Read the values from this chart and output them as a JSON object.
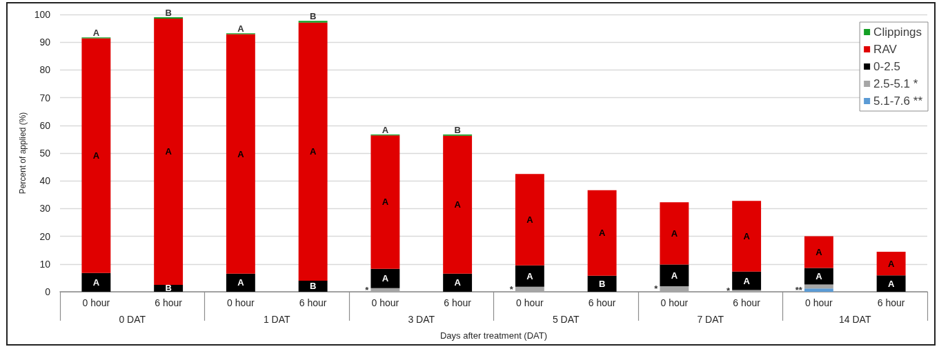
{
  "chart_data": {
    "type": "bar",
    "stacked": true,
    "xlabel": "Days after treatment (DAT)",
    "ylabel": "Percent of applied (%)",
    "categories": [
      "0 hour",
      "6 hour",
      "0 hour",
      "6 hour",
      "0 hour",
      "6 hour",
      "0 hour",
      "6 hour",
      "0 hour",
      "6 hour",
      "0 hour",
      "6 hour"
    ],
    "annotations": [
      "0 DAT",
      "1 DAT",
      "3 DAT",
      "5 DAT",
      "7 DAT",
      "14 DAT"
    ],
    "series": [
      {
        "name": "5.1-7.6 **",
        "color": "#5b9bd5",
        "values": [
          null,
          null,
          null,
          null,
          null,
          null,
          null,
          null,
          null,
          null,
          1.2,
          null
        ],
        "value_labels": [
          null,
          null,
          null,
          null,
          null,
          null,
          null,
          null,
          null,
          null,
          "**",
          null
        ]
      },
      {
        "name": "2.5-5.1 *",
        "color": "#a6a6a6",
        "values": [
          null,
          null,
          null,
          null,
          1.3,
          null,
          1.8,
          null,
          2.0,
          0.6,
          1.4,
          null
        ],
        "value_labels": [
          null,
          null,
          null,
          null,
          "*",
          null,
          "*",
          null,
          "*",
          "*",
          null,
          null
        ]
      },
      {
        "name": "0-2.5",
        "color": "#000000",
        "values": [
          6.8,
          2.5,
          6.5,
          4.0,
          7.0,
          6.5,
          7.7,
          5.8,
          7.8,
          6.7,
          6.0,
          5.9
        ],
        "value_labels": [
          "A",
          "B",
          "A",
          "B",
          "A",
          "A",
          "A",
          "B",
          "A",
          "A",
          "A",
          "A"
        ]
      },
      {
        "name": "RAV",
        "color": "#e00000",
        "values": [
          84.6,
          96.0,
          86.4,
          93.1,
          48.1,
          49.8,
          33.0,
          30.8,
          22.5,
          25.5,
          11.4,
          8.5
        ],
        "value_labels": [
          "A",
          "A",
          "A",
          "A",
          "A",
          "A",
          "A",
          "A",
          "A",
          "A",
          "A",
          "A"
        ]
      },
      {
        "name": "Clippings",
        "color": "#13a025",
        "values": [
          0.3,
          0.5,
          0.3,
          0.6,
          0.3,
          0.4,
          null,
          null,
          null,
          null,
          null,
          null
        ],
        "value_labels": [
          "A",
          "B",
          "A",
          "B",
          "A",
          "B",
          null,
          null,
          null,
          null,
          null,
          null
        ]
      }
    ],
    "ylim": [
      0,
      100
    ],
    "yticks": [
      0,
      10,
      20,
      30,
      40,
      50,
      60,
      70,
      80,
      90,
      100
    ],
    "grid": "y",
    "legend": "top right"
  }
}
